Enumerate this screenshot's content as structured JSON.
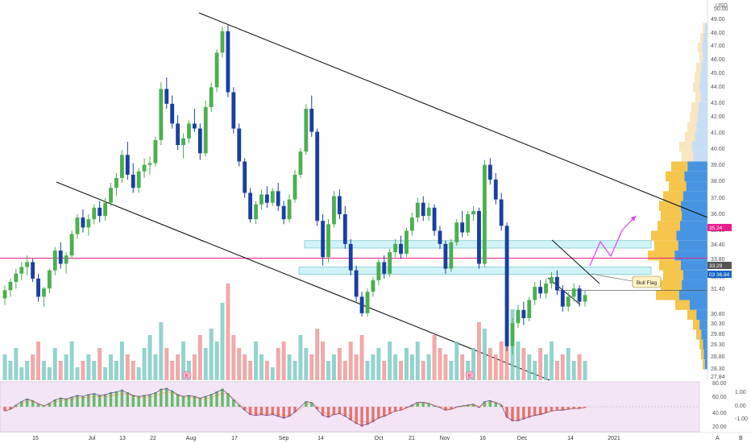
{
  "chart_data": {
    "type": "candlestick",
    "currency_label": "USD",
    "price_axis": {
      "ylim": [
        27.84,
        50.6
      ],
      "tick_labels": [
        "49.00",
        "48.00",
        "47.00",
        "46.00",
        "45.00",
        "44.00",
        "43.00",
        "42.00",
        "41.00",
        "40.00",
        "39.00",
        "38.00",
        "37.00",
        "36.00",
        "35.00",
        "34.40",
        "33.80",
        "32.60",
        "31.40",
        "30.80",
        "30.30",
        "29.80",
        "29.30",
        "28.80",
        "28.30",
        "27.84"
      ],
      "top_label": "50.00"
    },
    "price_markers": [
      {
        "value": "35.24",
        "color": "#e91e8c"
      },
      {
        "value": "33.29",
        "color": "#555555"
      },
      {
        "value": "36.84",
        "color": "#1565c0",
        "prefix": "03"
      }
    ],
    "x_axis": {
      "tick_labels": [
        "15",
        "Jul",
        "13",
        "22",
        "Aug",
        "17",
        "Sep",
        "14",
        "Oct",
        "21",
        "Nov",
        "16",
        "Dec",
        "14",
        "2021"
      ],
      "corner_labels": [
        "A",
        "B"
      ]
    },
    "candles": [
      [
        32.8,
        33.6,
        32.4,
        33.3
      ],
      [
        33.3,
        34.0,
        32.9,
        33.8
      ],
      [
        33.8,
        34.6,
        33.4,
        34.3
      ],
      [
        34.3,
        35.0,
        33.9,
        34.7
      ],
      [
        34.7,
        35.4,
        34.2,
        35.0
      ],
      [
        35.0,
        35.2,
        33.8,
        34.0
      ],
      [
        34.0,
        34.3,
        32.6,
        32.9
      ],
      [
        32.9,
        33.5,
        32.3,
        33.4
      ],
      [
        33.4,
        34.6,
        33.1,
        34.5
      ],
      [
        34.5,
        35.9,
        34.2,
        35.7
      ],
      [
        35.7,
        36.2,
        34.6,
        34.9
      ],
      [
        34.9,
        35.6,
        34.3,
        35.4
      ],
      [
        35.4,
        36.9,
        35.2,
        36.7
      ],
      [
        36.7,
        37.9,
        36.4,
        37.7
      ],
      [
        37.7,
        38.2,
        36.8,
        37.1
      ],
      [
        37.1,
        37.9,
        36.6,
        37.6
      ],
      [
        37.6,
        38.5,
        37.3,
        38.3
      ],
      [
        38.3,
        38.7,
        37.4,
        37.8
      ],
      [
        37.8,
        38.9,
        37.5,
        38.6
      ],
      [
        38.6,
        39.8,
        38.4,
        39.5
      ],
      [
        39.5,
        40.4,
        39.0,
        40.1
      ],
      [
        40.1,
        41.8,
        39.8,
        41.5
      ],
      [
        41.5,
        42.3,
        40.0,
        40.3
      ],
      [
        40.3,
        41.0,
        39.2,
        39.5
      ],
      [
        39.5,
        40.7,
        39.2,
        40.5
      ],
      [
        40.5,
        41.3,
        40.1,
        40.9
      ],
      [
        40.9,
        41.4,
        40.3,
        41.0
      ],
      [
        41.0,
        42.6,
        40.8,
        42.4
      ],
      [
        42.4,
        45.9,
        42.1,
        45.5
      ],
      [
        45.5,
        46.2,
        44.3,
        44.6
      ],
      [
        44.6,
        45.1,
        43.1,
        43.4
      ],
      [
        43.4,
        43.9,
        41.8,
        42.1
      ],
      [
        42.1,
        42.8,
        41.3,
        42.5
      ],
      [
        42.5,
        43.6,
        42.2,
        43.4
      ],
      [
        43.4,
        44.3,
        42.9,
        43.1
      ],
      [
        43.1,
        43.4,
        41.2,
        41.6
      ],
      [
        41.6,
        44.8,
        41.4,
        44.4
      ],
      [
        44.4,
        45.9,
        44.1,
        45.6
      ],
      [
        45.6,
        47.9,
        45.3,
        47.7
      ],
      [
        47.7,
        49.3,
        47.4,
        49.0
      ],
      [
        49.0,
        49.4,
        45.0,
        45.3
      ],
      [
        45.3,
        45.6,
        42.8,
        43.1
      ],
      [
        43.1,
        43.4,
        40.8,
        41.1
      ],
      [
        41.1,
        41.3,
        38.9,
        39.2
      ],
      [
        39.2,
        39.5,
        37.4,
        37.6
      ],
      [
        37.6,
        38.7,
        37.3,
        38.5
      ],
      [
        38.5,
        39.4,
        38.2,
        39.1
      ],
      [
        39.1,
        39.6,
        38.3,
        38.6
      ],
      [
        38.6,
        39.5,
        38.4,
        39.3
      ],
      [
        39.3,
        39.8,
        38.1,
        38.4
      ],
      [
        38.4,
        38.7,
        37.3,
        37.6
      ],
      [
        37.6,
        39.1,
        37.4,
        38.8
      ],
      [
        38.8,
        40.6,
        38.6,
        40.3
      ],
      [
        40.3,
        41.9,
        40.1,
        41.7
      ],
      [
        41.7,
        44.6,
        41.5,
        44.3
      ],
      [
        44.3,
        45.1,
        42.6,
        42.9
      ],
      [
        42.9,
        43.1,
        37.2,
        37.5
      ],
      [
        37.5,
        37.9,
        34.8,
        35.3
      ],
      [
        35.3,
        37.6,
        35.0,
        37.3
      ],
      [
        37.3,
        39.3,
        37.1,
        39.0
      ],
      [
        39.0,
        39.4,
        37.6,
        37.9
      ],
      [
        37.9,
        38.4,
        35.8,
        36.1
      ],
      [
        36.1,
        36.4,
        34.2,
        34.5
      ],
      [
        34.5,
        34.8,
        32.6,
        32.9
      ],
      [
        32.9,
        33.2,
        31.7,
        31.9
      ],
      [
        31.9,
        33.4,
        31.7,
        33.2
      ],
      [
        33.2,
        34.1,
        32.9,
        33.9
      ],
      [
        33.9,
        35.2,
        33.6,
        35.0
      ],
      [
        35.0,
        35.4,
        34.0,
        34.3
      ],
      [
        34.3,
        35.8,
        34.1,
        35.6
      ],
      [
        35.6,
        36.4,
        35.3,
        36.1
      ],
      [
        36.1,
        36.6,
        35.2,
        35.5
      ],
      [
        35.5,
        37.1,
        35.3,
        36.9
      ],
      [
        36.9,
        38.0,
        36.6,
        37.7
      ],
      [
        37.7,
        38.9,
        37.4,
        38.6
      ],
      [
        38.6,
        39.0,
        37.5,
        37.8
      ],
      [
        37.8,
        38.6,
        37.5,
        38.3
      ],
      [
        38.3,
        38.5,
        36.6,
        36.9
      ],
      [
        36.9,
        37.2,
        35.8,
        36.1
      ],
      [
        36.1,
        36.3,
        34.3,
        34.6
      ],
      [
        34.6,
        36.4,
        34.4,
        36.2
      ],
      [
        36.2,
        37.6,
        36.0,
        37.4
      ],
      [
        37.4,
        38.1,
        36.5,
        36.8
      ],
      [
        36.8,
        38.1,
        36.6,
        37.9
      ],
      [
        37.9,
        38.4,
        37.5,
        38.1
      ],
      [
        38.1,
        38.3,
        34.6,
        34.9
      ],
      [
        34.9,
        41.2,
        34.7,
        40.9
      ],
      [
        40.9,
        41.3,
        39.7,
        40.0
      ],
      [
        40.0,
        40.4,
        38.5,
        38.8
      ],
      [
        38.8,
        39.2,
        36.9,
        37.2
      ],
      [
        37.2,
        37.4,
        29.6,
        29.9
      ],
      [
        29.9,
        31.6,
        29.4,
        31.3
      ],
      [
        31.3,
        32.4,
        31.0,
        32.1
      ],
      [
        32.1,
        32.6,
        31.2,
        31.6
      ],
      [
        31.6,
        32.9,
        31.4,
        32.7
      ],
      [
        32.7,
        33.8,
        32.4,
        33.5
      ],
      [
        33.5,
        33.9,
        32.8,
        33.1
      ],
      [
        33.1,
        34.0,
        32.8,
        33.7
      ],
      [
        33.7,
        34.4,
        33.4,
        34.1
      ],
      [
        34.1,
        34.5,
        33.0,
        33.3
      ],
      [
        33.3,
        33.6,
        32.0,
        32.3
      ],
      [
        32.3,
        33.2,
        32.0,
        32.9
      ],
      [
        32.9,
        33.7,
        32.6,
        33.4
      ],
      [
        33.4,
        33.6,
        32.3,
        32.6
      ],
      [
        32.6,
        33.3,
        32.3,
        33.0
      ]
    ],
    "volume_values": [
      4,
      3,
      5,
      2,
      3,
      4,
      6,
      3,
      2,
      5,
      3,
      4,
      6,
      2,
      3,
      4,
      3,
      5,
      2,
      4,
      3,
      6,
      4,
      3,
      2,
      5,
      7,
      4,
      9,
      5,
      3,
      4,
      6,
      3,
      4,
      7,
      5,
      8,
      6,
      12,
      15,
      7,
      5,
      4,
      3,
      6,
      4,
      3,
      2,
      5,
      6,
      4,
      3,
      7,
      5,
      4,
      8,
      6,
      3,
      4,
      5,
      3,
      6,
      4,
      7,
      3,
      4,
      5,
      3,
      6,
      4,
      3,
      5,
      4,
      6,
      3,
      4,
      7,
      5,
      4,
      3,
      6,
      4,
      3,
      5,
      9,
      8,
      5,
      4,
      6,
      14,
      11,
      6,
      5,
      4,
      3,
      5,
      4,
      6,
      3,
      4,
      5,
      3,
      4,
      3
    ],
    "macd_values": [
      -0.5,
      -0.3,
      0.2,
      0.6,
      0.9,
      0.7,
      0.3,
      0.1,
      0.4,
      0.8,
      1.0,
      0.9,
      1.1,
      1.3,
      1.2,
      1.4,
      1.5,
      1.3,
      1.4,
      1.6,
      1.7,
      1.9,
      1.6,
      1.3,
      1.2,
      1.3,
      1.4,
      1.6,
      2.0,
      2.1,
      1.8,
      1.4,
      1.2,
      1.3,
      1.2,
      1.0,
      1.2,
      1.4,
      1.7,
      2.0,
      1.5,
      0.8,
      0.2,
      -0.4,
      -0.9,
      -1.0,
      -0.9,
      -1.0,
      -0.9,
      -1.1,
      -1.3,
      -1.1,
      -0.6,
      0.0,
      0.6,
      0.5,
      -0.3,
      -1.0,
      -1.2,
      -0.9,
      -0.8,
      -1.1,
      -1.5,
      -1.9,
      -2.2,
      -2.0,
      -1.7,
      -1.3,
      -1.1,
      -0.8,
      -0.5,
      -0.4,
      -0.1,
      0.2,
      0.5,
      0.5,
      0.4,
      0.1,
      -0.1,
      -0.4,
      -0.3,
      0.0,
      0.1,
      0.2,
      0.3,
      -0.1,
      0.6,
      0.7,
      0.5,
      0.2,
      -1.2,
      -1.6,
      -1.6,
      -1.4,
      -1.2,
      -1.0,
      -0.9,
      -0.7,
      -0.5,
      -0.4,
      -0.4,
      -0.3,
      -0.2,
      -0.2,
      -0.1
    ],
    "indicator_axis": {
      "left_ticks": [
        "80.00",
        "60.00",
        "40.00",
        "20.00"
      ],
      "right_ticks": [
        "1.00",
        "0.00",
        "-1.00"
      ]
    },
    "annotations": {
      "bull_flag_label": "Bull Flag",
      "earnings_marker": "E"
    },
    "horizontal_levels": [
      {
        "value": 35.24,
        "color": "#e91e8c"
      }
    ],
    "zones": [
      {
        "from": 35.85,
        "to": 36.3,
        "color": "#b2ebf2"
      },
      {
        "from": 34.25,
        "to": 34.7,
        "color": "#b2ebf2"
      }
    ],
    "colors": {
      "bull": "#4caf50",
      "bear": "#1a3fa0",
      "vol_bull": "#80cbc4",
      "vol_bear": "#ef9a9a",
      "projection": "#e040fb",
      "indicator_bg": "#f3e5f5"
    }
  }
}
